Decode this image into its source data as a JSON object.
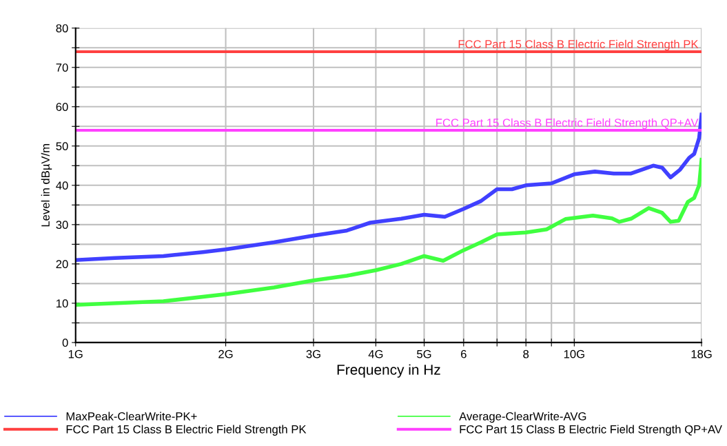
{
  "chart_data": {
    "type": "line",
    "xlabel": "Frequency in Hz",
    "ylabel": "Level in dBµV/m",
    "log": "x",
    "xlim": [
      1,
      18
    ],
    "xticks": [
      {
        "value": 1,
        "label": "1G"
      },
      {
        "value": 2,
        "label": "2G"
      },
      {
        "value": 3,
        "label": "3G"
      },
      {
        "value": 4,
        "label": "4G"
      },
      {
        "value": 5,
        "label": "5G"
      },
      6,
      {
        "value": 7,
        "label": null
      },
      8,
      {
        "value": 9,
        "label": null
      },
      {
        "value": 10,
        "label": "10G"
      },
      {
        "value": 18,
        "label": "18G"
      }
    ],
    "ylim": [
      0,
      80
    ],
    "yticks": [
      0,
      {
        "value": 5,
        "label": null
      },
      10,
      {
        "value": 15,
        "label": null
      },
      20,
      {
        "value": 25,
        "label": null
      },
      30,
      {
        "value": 35,
        "label": null
      },
      40,
      {
        "value": 45,
        "label": null
      },
      50,
      {
        "value": 55,
        "label": null
      },
      60,
      {
        "value": 65,
        "label": null
      },
      70,
      {
        "value": 75,
        "label": null
      },
      80
    ],
    "grid": true,
    "legend": "bottom",
    "marker": "none",
    "line_style": "solid",
    "series": [
      {
        "name": "MaxPeak-ClearWrite-PK+",
        "color": "#4040ff",
        "x": [
          1,
          1.2,
          1.5,
          1.8,
          2,
          2.5,
          3,
          3.5,
          3.9,
          4.5,
          5,
          5.5,
          6,
          6.5,
          7,
          7.5,
          8,
          9,
          10,
          11,
          12,
          13,
          14.4,
          15,
          15.6,
          16.3,
          17,
          17.4,
          17.8,
          18
        ],
        "values": [
          21,
          21.5,
          22,
          23,
          23.7,
          25.5,
          27.2,
          28.5,
          30.5,
          31.5,
          32.5,
          32,
          34,
          36,
          39,
          39,
          40,
          40.5,
          42.8,
          43.5,
          43,
          43,
          45,
          44.5,
          42,
          44,
          47,
          48,
          52,
          58
        ]
      },
      {
        "name": "Average-ClearWrite-AVG",
        "color": "#40ff40",
        "x": [
          1,
          1.5,
          2,
          2.5,
          3,
          3.5,
          4,
          4.5,
          5,
          5.46,
          6,
          6.5,
          7,
          8,
          8.8,
          9.6,
          10.9,
          11.9,
          12.3,
          13,
          14.1,
          15,
          15.6,
          16.2,
          16.9,
          17.4,
          17.8,
          18
        ],
        "values": [
          9.6,
          10.5,
          12.3,
          14,
          15.8,
          17,
          18.4,
          20,
          22,
          20.8,
          23.5,
          25.5,
          27.5,
          28,
          28.8,
          31.4,
          32.3,
          31.6,
          30.7,
          31.5,
          34.2,
          33,
          30.7,
          31,
          35.8,
          36.8,
          40,
          46.5
        ]
      }
    ],
    "ref_lines": [
      {
        "axis": "y",
        "value": 74,
        "label": "FCC Part 15 Class B Electric Field Strength PK",
        "color": "#ff4040",
        "line_style": "solid"
      },
      {
        "axis": "y",
        "value": 54,
        "label": "FCC Part 15 Class B Electric Field Strength QP+AV",
        "color": "#ff40ff",
        "line_style": "solid"
      }
    ]
  }
}
